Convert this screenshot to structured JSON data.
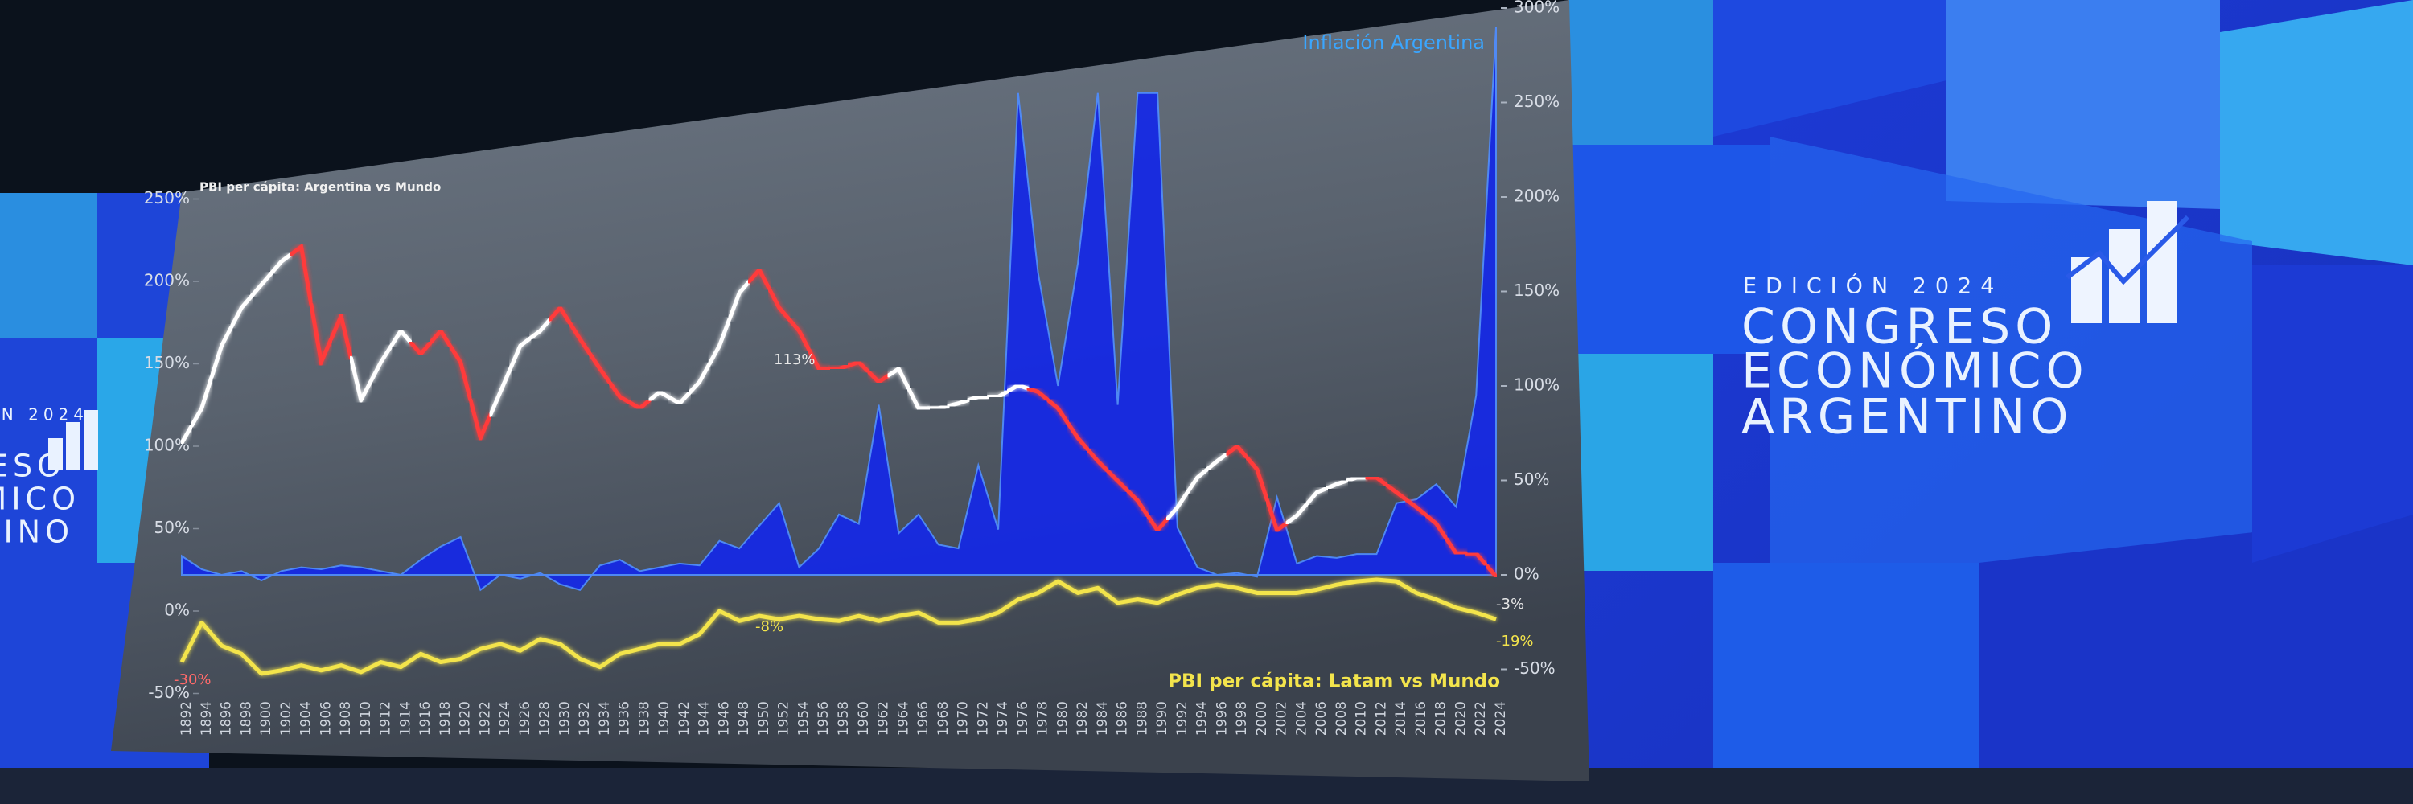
{
  "chart_data": {
    "type": "line",
    "categories": [
      "1892",
      "1894",
      "1896",
      "1898",
      "1900",
      "1902",
      "1904",
      "1906",
      "1908",
      "1910",
      "1912",
      "1914",
      "1916",
      "1918",
      "1920",
      "1922",
      "1924",
      "1926",
      "1928",
      "1930",
      "1932",
      "1934",
      "1936",
      "1938",
      "1940",
      "1942",
      "1944",
      "1946",
      "1948",
      "1950",
      "1952",
      "1954",
      "1956",
      "1958",
      "1960",
      "1962",
      "1964",
      "1966",
      "1968",
      "1970",
      "1972",
      "1974",
      "1976",
      "1978",
      "1980",
      "1982",
      "1984",
      "1986",
      "1988",
      "1990",
      "1992",
      "1994",
      "1996",
      "1998",
      "2000",
      "2002",
      "2004",
      "2006",
      "2008",
      "2010",
      "2012",
      "2014",
      "2016",
      "2018",
      "2020",
      "2022",
      "2024"
    ],
    "ylim": [
      -50,
      250
    ],
    "yticks": [
      {
        "value": 250,
        "label": "250%"
      },
      {
        "value": 200,
        "label": "200%"
      },
      {
        "value": 150,
        "label": "150%"
      },
      {
        "value": 100,
        "label": "100%"
      },
      {
        "value": 50,
        "label": "50%"
      },
      {
        "value": 0,
        "label": "0%"
      },
      {
        "value": -50,
        "label": "-50%"
      }
    ],
    "y2lim": [
      -50,
      300
    ],
    "y2ticks": [
      {
        "value": 300,
        "label": "300%"
      },
      {
        "value": 250,
        "label": "250%"
      },
      {
        "value": 200,
        "label": "200%"
      },
      {
        "value": 150,
        "label": "150%"
      },
      {
        "value": 100,
        "label": "100%"
      },
      {
        "value": 50,
        "label": "50%"
      },
      {
        "value": 0,
        "label": "0%"
      },
      {
        "value": -50,
        "label": "-50%"
      }
    ],
    "series": [
      {
        "name": "Inflación Argentina",
        "type": "area",
        "axis": "y2",
        "color": "#1428e8",
        "values": [
          10,
          3,
          0,
          2,
          -3,
          2,
          4,
          3,
          5,
          4,
          2,
          0,
          8,
          15,
          20,
          -8,
          0,
          -2,
          1,
          -5,
          -8,
          5,
          8,
          2,
          4,
          6,
          5,
          18,
          14,
          26,
          38,
          4,
          14,
          32,
          27,
          90,
          22,
          32,
          16,
          14,
          58,
          24,
          255,
          160,
          100,
          165,
          255,
          90,
          255,
          255,
          25,
          4,
          0,
          1,
          -1,
          41,
          6,
          10,
          9,
          11,
          11,
          38,
          40,
          48,
          36,
          95,
          290
        ]
      },
      {
        "name": "PBI per cápita: Argentina vs Mundo",
        "type": "line",
        "colors": [
          "#ffffff",
          "#ffffff",
          "#ffffff",
          "#ffffff",
          "#ffffff",
          "#ffffff",
          "#ff3b3b",
          "#ff3b3b",
          "#ff3b3b",
          "#ffffff",
          "#ffffff",
          "#ffffff",
          "#ff3b3b",
          "#ff3b3b",
          "#ff3b3b",
          "#ff3b3b",
          "#ffffff",
          "#ffffff",
          "#ffffff",
          "#ff3b3b",
          "#ff3b3b",
          "#ff3b3b",
          "#ff3b3b",
          "#ff3b3b",
          "#ffffff",
          "#ffffff",
          "#ffffff",
          "#ffffff",
          "#ffffff",
          "#ff3b3b",
          "#ff3b3b",
          "#ff3b3b",
          "#ff3b3b",
          "#ff3b3b",
          "#ff3b3b",
          "#ff3b3b",
          "#ffffff",
          "#ffffff",
          "#ffffff",
          "#ffffff",
          "#ffffff",
          "#ffffff",
          "#ffffff",
          "#ff3b3b",
          "#ff3b3b",
          "#ff3b3b",
          "#ff3b3b",
          "#ff3b3b",
          "#ff3b3b",
          "#ff3b3b",
          "#ffffff",
          "#ffffff",
          "#ffffff",
          "#ff3b3b",
          "#ff3b3b",
          "#ff3b3b",
          "#ffffff",
          "#ffffff",
          "#ffffff",
          "#ffffff",
          "#ff3b3b",
          "#ff3b3b",
          "#ff3b3b",
          "#ff3b3b",
          "#ff3b3b",
          "#ff3b3b",
          "#ff3b3b"
        ],
        "values": [
          102,
          123,
          161,
          184,
          198,
          212,
          221,
          151,
          179,
          128,
          151,
          170,
          156,
          170,
          151,
          105,
          133,
          161,
          170,
          184,
          165,
          147,
          130,
          123,
          133,
          126,
          139,
          161,
          193,
          207,
          184,
          170,
          147,
          147,
          151,
          139,
          147,
          123,
          123,
          126,
          130,
          130,
          137,
          133,
          123,
          105,
          91,
          79,
          67,
          49,
          63,
          81,
          91,
          100,
          86,
          49,
          58,
          72,
          77,
          81,
          81,
          72,
          63,
          53,
          35,
          35,
          21
        ]
      },
      {
        "name": "PBI per cápita: Latam vs Mundo",
        "type": "line",
        "color": "#f3e44c",
        "values": [
          -31,
          -7,
          -21,
          -26,
          -38,
          -36,
          -33,
          -36,
          -33,
          -37,
          -31,
          -34,
          -26,
          -31,
          -29,
          -23,
          -20,
          -24,
          -17,
          -20,
          -29,
          -34,
          -26,
          -23,
          -20,
          -20,
          -14,
          0,
          -6,
          -3,
          -5,
          -3,
          -5,
          -6,
          -3,
          -6,
          -3,
          -1,
          -7,
          -7,
          -5,
          -1,
          7,
          11,
          18,
          11,
          14,
          5,
          7,
          5,
          10,
          14,
          16,
          14,
          11,
          11,
          11,
          13,
          16,
          18,
          19,
          18,
          11,
          7,
          2,
          -1,
          -5
        ]
      }
    ],
    "annotations": [
      {
        "text": "113%"
      },
      {
        "text": "-8%"
      },
      {
        "text": "-3%"
      },
      {
        "text": "-19%"
      },
      {
        "text": "-30%"
      }
    ]
  },
  "branding": {
    "edition": "EDICIÓN 2024",
    "lines": [
      "CONGRESO",
      "ECONÓMICO",
      "ARGENTINO"
    ]
  }
}
